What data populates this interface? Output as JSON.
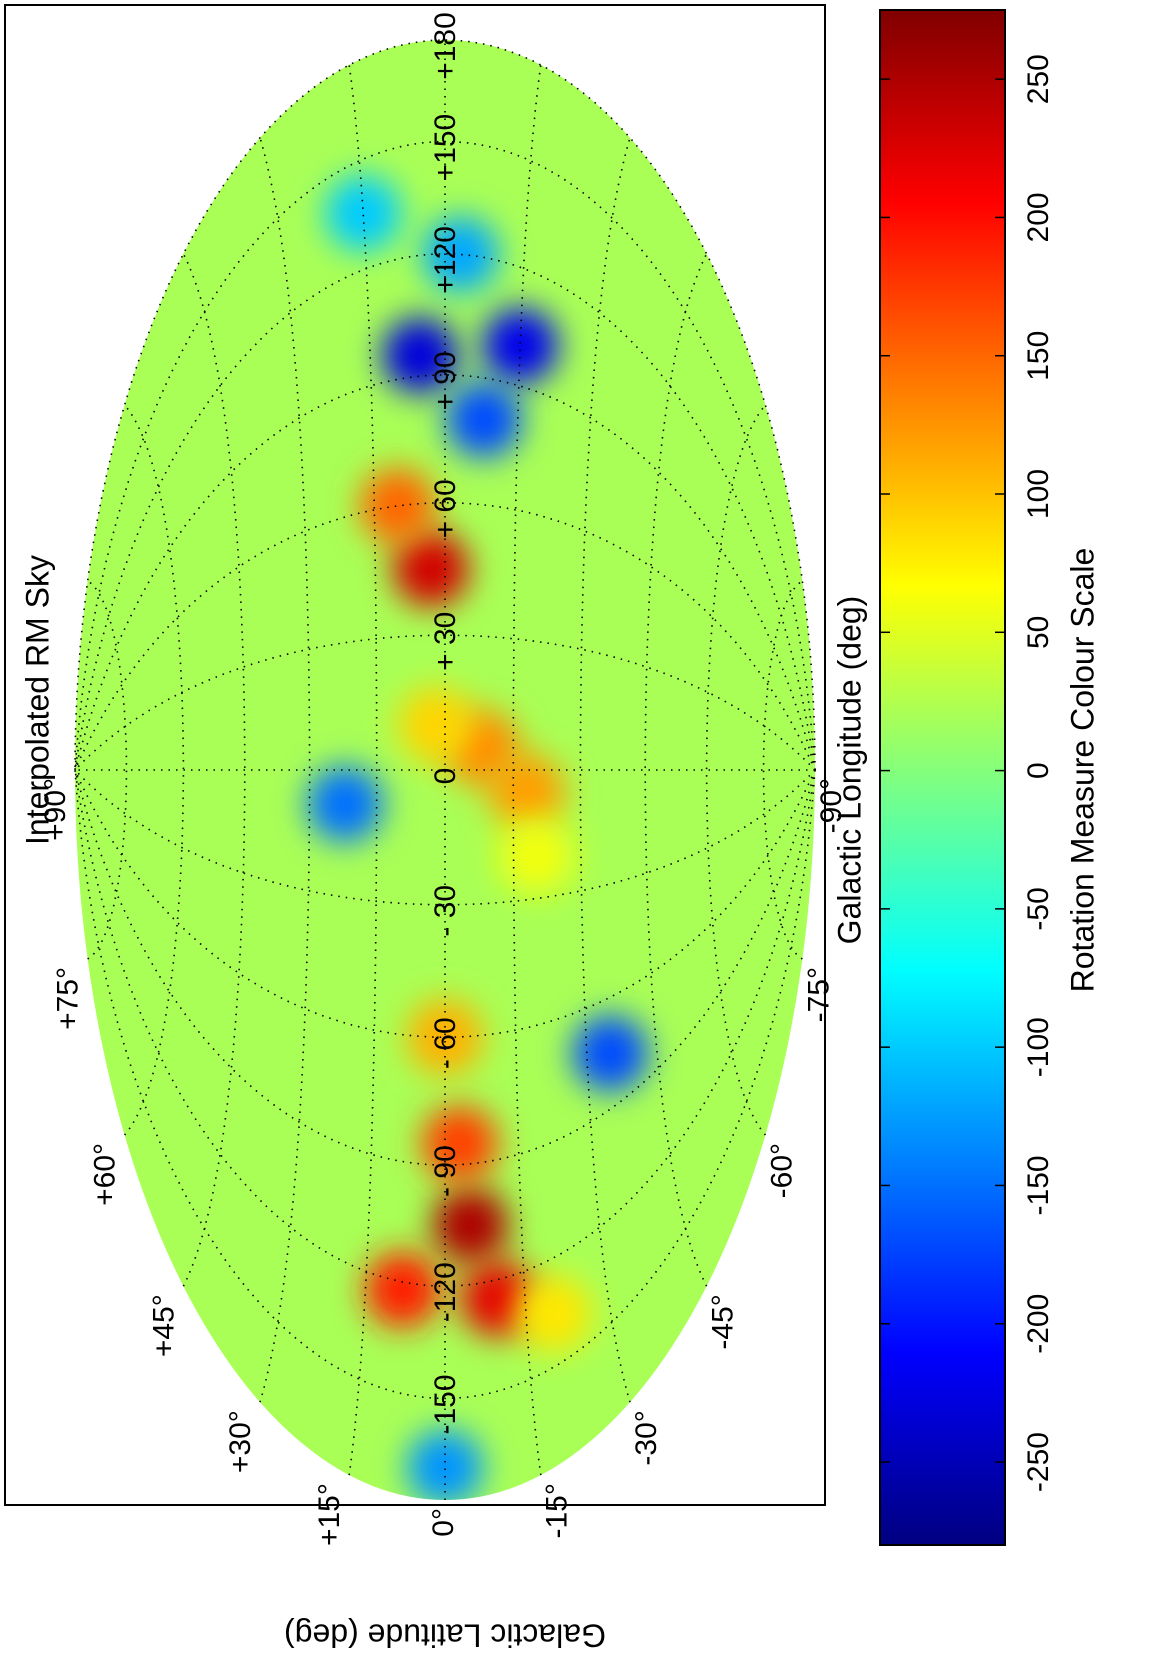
{
  "chart_data": {
    "type": "sky-map",
    "projection": "hammer-aitoff",
    "title": "Interpolated RM Sky",
    "x_label": "Galactic Longitude (deg)",
    "y_label": "Galactic Latitude (deg)",
    "xlim": [
      -180,
      180
    ],
    "ylim": [
      -90,
      90
    ],
    "xticks": [
      {
        "value": -150,
        "label": "-150"
      },
      {
        "value": -120,
        "label": "-120"
      },
      {
        "value": -90,
        "label": "- 90"
      },
      {
        "value": -60,
        "label": "- 60"
      },
      {
        "value": -30,
        "label": "- 30"
      },
      0,
      {
        "value": 30,
        "label": "+ 30"
      },
      {
        "value": 60,
        "label": "+ 60"
      },
      {
        "value": 90,
        "label": "+ 90"
      },
      {
        "value": 120,
        "label": "+120"
      },
      {
        "value": 150,
        "label": "+150"
      },
      {
        "value": 180,
        "label": "+180"
      }
    ],
    "yticks": [
      {
        "value": -90,
        "label": "-90°"
      },
      {
        "value": -75,
        "label": "-75°"
      },
      {
        "value": -60,
        "label": "-60°"
      },
      {
        "value": -45,
        "label": "-45°"
      },
      {
        "value": -30,
        "label": "-30°"
      },
      {
        "value": -15,
        "label": "-15°"
      },
      {
        "value": 0,
        "label": "0°"
      },
      {
        "value": 15,
        "label": "+15°"
      },
      {
        "value": 30,
        "label": "+30°"
      },
      {
        "value": 45,
        "label": "+45°"
      },
      {
        "value": 60,
        "label": "+60°"
      },
      {
        "value": 75,
        "label": "+75°"
      },
      {
        "value": 90,
        "label": "+90°"
      }
    ],
    "grid": true,
    "colorbar": {
      "label": "Rotation Measure Colour Scale",
      "colormap": "jet",
      "clim": [
        -280,
        275
      ],
      "ticks": [
        -250,
        -200,
        -150,
        -100,
        -50,
        0,
        50,
        100,
        150,
        200,
        250
      ]
    },
    "field": {
      "baseline": 20,
      "sources": [
        {
          "lon": 95,
          "lat": 5,
          "value": -230
        },
        {
          "lon": 100,
          "lat": -15,
          "value": -220
        },
        {
          "lon": 80,
          "lat": -8,
          "value": -170
        },
        {
          "lon": 120,
          "lat": -3,
          "value": -120
        },
        {
          "lon": 135,
          "lat": 15,
          "value": -100
        },
        {
          "lon": 45,
          "lat": 3,
          "value": 230
        },
        {
          "lon": 60,
          "lat": 10,
          "value": 150
        },
        {
          "lon": -105,
          "lat": -5,
          "value": 250
        },
        {
          "lon": -125,
          "lat": -10,
          "value": 220
        },
        {
          "lon": -122,
          "lat": 8,
          "value": 190
        },
        {
          "lon": -85,
          "lat": -3,
          "value": 170
        },
        {
          "lon": -60,
          "lat": 0,
          "value": 110
        },
        {
          "lon": 5,
          "lat": -8,
          "value": 130
        },
        {
          "lon": -5,
          "lat": -18,
          "value": 120
        },
        {
          "lon": -8,
          "lat": 22,
          "value": -150
        },
        {
          "lon": -75,
          "lat": -35,
          "value": -170
        },
        {
          "lon": -170,
          "lat": 0,
          "value": -130
        },
        {
          "lon": -135,
          "lat": -20,
          "value": 80
        },
        {
          "lon": 10,
          "lat": 2,
          "value": 90
        },
        {
          "lon": -20,
          "lat": -20,
          "value": 60
        }
      ]
    }
  }
}
